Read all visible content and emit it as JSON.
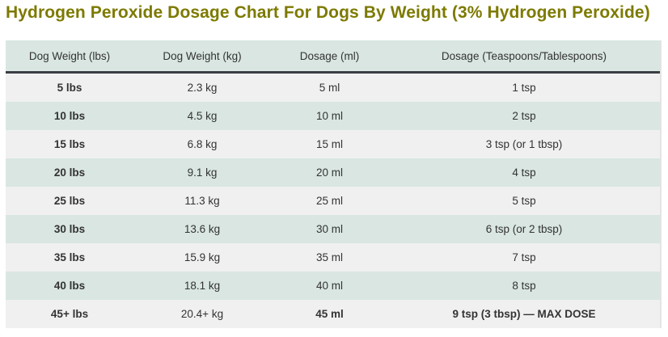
{
  "title": "Hydrogen Peroxide Dosage Chart For Dogs By Weight (3% Hydrogen Peroxide)",
  "headers": [
    "Dog Weight (lbs)",
    "Dog Weight (kg)",
    "Dosage (ml)",
    "Dosage (Teaspoons/Tablespoons)"
  ],
  "rows": [
    [
      "5 lbs",
      "2.3 kg",
      "5 ml",
      "1 tsp"
    ],
    [
      "10 lbs",
      "4.5 kg",
      "10 ml",
      "2 tsp"
    ],
    [
      "15 lbs",
      "6.8 kg",
      "15 ml",
      "3 tsp (or 1 tbsp)"
    ],
    [
      "20 lbs",
      "9.1 kg",
      "20 ml",
      "4 tsp"
    ],
    [
      "25 lbs",
      "11.3 kg",
      "25 ml",
      "5 tsp"
    ],
    [
      "30 lbs",
      "13.6 kg",
      "30 ml",
      "6 tsp (or 2 tbsp)"
    ],
    [
      "35 lbs",
      "15.9 kg",
      "35 ml",
      "7 tsp"
    ],
    [
      "40 lbs",
      "18.1 kg",
      "40 ml",
      "8 tsp"
    ],
    [
      "45+ lbs",
      "20.4+ kg",
      "45 ml",
      "9 tsp (3 tbsp) — MAX DOSE"
    ]
  ]
}
